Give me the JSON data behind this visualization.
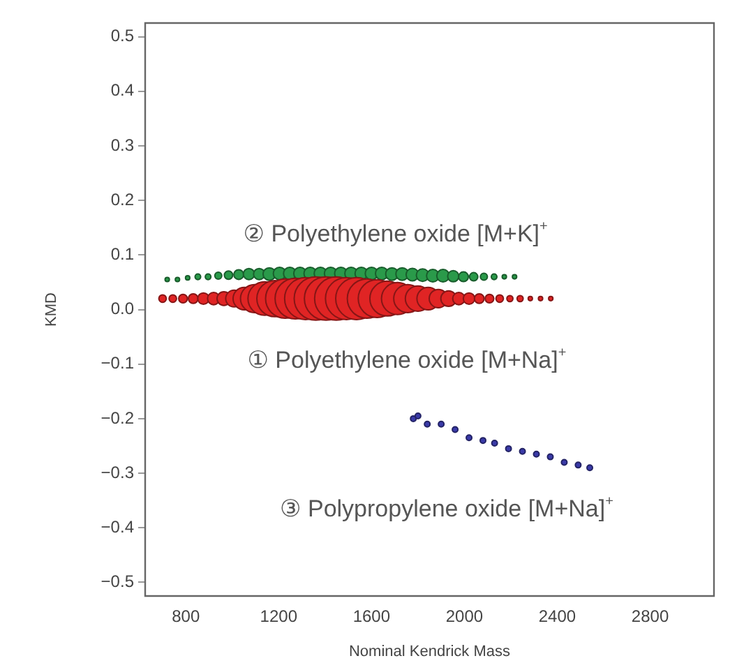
{
  "chart_data": {
    "type": "bubble",
    "xlabel": "Nominal Kendrick Mass",
    "ylabel": "KMD",
    "xlim": [
      625,
      3075
    ],
    "xticks": [
      800,
      1200,
      1600,
      2000,
      2400,
      2800
    ],
    "ylim": [
      -0.525,
      0.525
    ],
    "yticks": [
      {
        "value": -0.5,
        "label": "−0.5"
      },
      {
        "value": -0.4,
        "label": "−0.4"
      },
      {
        "value": -0.3,
        "label": "−0.3"
      },
      {
        "value": -0.2,
        "label": "−0.2"
      },
      {
        "value": -0.1,
        "label": "−0.1"
      },
      {
        "value": 0,
        "label": "0.0"
      },
      0.1,
      0.2,
      0.3,
      0.4,
      0.5
    ],
    "grid": false,
    "legend": false,
    "series": [
      {
        "color": "#e02424",
        "x": [
          700,
          744,
          788,
          832,
          876,
          920,
          964,
          1008,
          1052,
          1096,
          1140,
          1184,
          1228,
          1272,
          1316,
          1360,
          1404,
          1448,
          1492,
          1536,
          1580,
          1624,
          1668,
          1712,
          1756,
          1800,
          1844,
          1888,
          1932,
          1976,
          2020,
          2064,
          2108,
          2152,
          2196,
          2240,
          2284,
          2328,
          2372
        ],
        "values": [
          0.02,
          0.02,
          0.02,
          0.02,
          0.02,
          0.02,
          0.02,
          0.02,
          0.02,
          0.02,
          0.02,
          0.02,
          0.02,
          0.02,
          0.02,
          0.02,
          0.02,
          0.02,
          0.02,
          0.02,
          0.02,
          0.02,
          0.02,
          0.02,
          0.02,
          0.02,
          0.02,
          0.02,
          0.02,
          0.02,
          0.02,
          0.02,
          0.02,
          0.02,
          0.02,
          0.02,
          0.02,
          0.02,
          0.02
        ],
        "sizes": [
          0.03,
          0.03,
          0.04,
          0.05,
          0.07,
          0.08,
          0.1,
          0.15,
          0.27,
          0.42,
          0.6,
          0.7,
          0.82,
          0.88,
          0.94,
          1,
          1,
          1,
          0.94,
          0.94,
          0.82,
          0.76,
          0.65,
          0.55,
          0.42,
          0.34,
          0.27,
          0.18,
          0.13,
          0.08,
          0.07,
          0.05,
          0.04,
          0.03,
          0.02,
          0.02,
          0.01,
          0.01,
          0.01
        ]
      },
      {
        "color": "#2a9a4a",
        "x": [
          720,
          764,
          808,
          852,
          896,
          940,
          984,
          1028,
          1072,
          1116,
          1160,
          1204,
          1248,
          1292,
          1336,
          1380,
          1424,
          1468,
          1512,
          1556,
          1600,
          1644,
          1688,
          1732,
          1776,
          1820,
          1864,
          1908,
          1952,
          1996,
          2040,
          2084,
          2128,
          2172,
          2216
        ],
        "values": [
          0.055,
          0.055,
          0.058,
          0.06,
          0.06,
          0.062,
          0.063,
          0.064,
          0.065,
          0.065,
          0.065,
          0.066,
          0.066,
          0.066,
          0.066,
          0.066,
          0.066,
          0.066,
          0.066,
          0.066,
          0.066,
          0.066,
          0.065,
          0.065,
          0.064,
          0.063,
          0.062,
          0.062,
          0.061,
          0.06,
          0.06,
          0.06,
          0.06,
          0.06,
          0.06
        ],
        "sizes": [
          0.01,
          0.01,
          0.01,
          0.017,
          0.017,
          0.026,
          0.037,
          0.051,
          0.067,
          0.067,
          0.084,
          0.084,
          0.084,
          0.084,
          0.084,
          0.084,
          0.084,
          0.084,
          0.084,
          0.084,
          0.084,
          0.084,
          0.084,
          0.084,
          0.084,
          0.084,
          0.084,
          0.084,
          0.067,
          0.051,
          0.037,
          0.026,
          0.017,
          0.01,
          0.01
        ]
      },
      {
        "type": "scatter",
        "color": "#3a3aa8",
        "x": [
          1780,
          1800,
          1840,
          1900,
          1960,
          2020,
          2080,
          2130,
          2190,
          2250,
          2310,
          2370,
          2430,
          2490,
          2540
        ],
        "values": [
          -0.2,
          -0.195,
          -0.21,
          -0.21,
          -0.22,
          -0.235,
          -0.24,
          -0.245,
          -0.255,
          -0.26,
          -0.265,
          -0.27,
          -0.28,
          -0.285,
          -0.29
        ]
      }
    ],
    "annotations": [
      "② Polyethylene oxide [M+K]$^{+}$",
      "① Polyethylene oxide [M+Na]$^{+}$",
      "③ Polypropylene oxide [M+Na]$^{+}$"
    ]
  }
}
